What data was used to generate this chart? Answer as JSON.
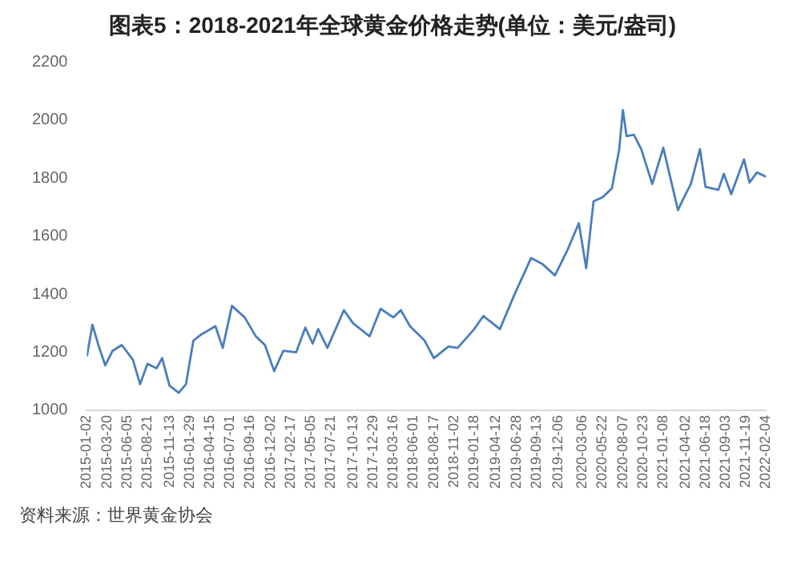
{
  "chart_data": {
    "type": "line",
    "title": "图表5：2018-2021年全球黄金价格走势(单位：美元/盎司)",
    "annotations": [
      "资料来源：世界黄金协会"
    ],
    "x": [
      "2015-01-02",
      "2015-01-23",
      "2015-02-13",
      "2015-03-13",
      "2015-04-10",
      "2015-05-15",
      "2015-06-26",
      "2015-07-24",
      "2015-08-21",
      "2015-09-25",
      "2015-10-16",
      "2015-11-13",
      "2015-12-18",
      "2016-01-15",
      "2016-02-12",
      "2016-03-11",
      "2016-05-06",
      "2016-06-03",
      "2016-07-08",
      "2016-08-26",
      "2016-10-07",
      "2016-11-11",
      "2016-12-16",
      "2017-01-20",
      "2017-03-10",
      "2017-04-14",
      "2017-05-12",
      "2017-06-02",
      "2017-07-07",
      "2017-09-08",
      "2017-10-13",
      "2017-12-15",
      "2018-01-26",
      "2018-03-16",
      "2018-04-13",
      "2018-05-18",
      "2018-07-13",
      "2018-08-17",
      "2018-10-12",
      "2018-11-16",
      "2019-01-18",
      "2019-02-22",
      "2019-04-26",
      "2019-06-21",
      "2019-08-23",
      "2019-10-04",
      "2019-11-22",
      "2020-01-10",
      "2020-02-21",
      "2020-03-20",
      "2020-04-17",
      "2020-05-22",
      "2020-06-26",
      "2020-07-24",
      "2020-08-07",
      "2020-08-21",
      "2020-09-18",
      "2020-10-16",
      "2020-11-27",
      "2021-01-08",
      "2021-03-05",
      "2021-03-26",
      "2021-04-23",
      "2021-05-28",
      "2021-06-18",
      "2021-08-06",
      "2021-08-27",
      "2021-09-24",
      "2021-11-12",
      "2021-12-03",
      "2021-12-31",
      "2022-02-04"
    ],
    "series": [
      {
        "color": "#4a7ebb",
        "values": [
          1186,
          1295,
          1230,
          1155,
          1205,
          1225,
          1175,
          1090,
          1160,
          1145,
          1180,
          1085,
          1060,
          1090,
          1240,
          1260,
          1290,
          1215,
          1360,
          1320,
          1255,
          1225,
          1135,
          1205,
          1200,
          1285,
          1230,
          1280,
          1215,
          1345,
          1300,
          1255,
          1350,
          1320,
          1345,
          1290,
          1240,
          1180,
          1220,
          1215,
          1280,
          1325,
          1280,
          1400,
          1525,
          1505,
          1465,
          1555,
          1645,
          1490,
          1720,
          1735,
          1765,
          1900,
          2035,
          1945,
          1950,
          1900,
          1780,
          1905,
          1690,
          1730,
          1780,
          1900,
          1770,
          1760,
          1815,
          1745,
          1865,
          1785,
          1820,
          1805
        ]
      }
    ],
    "xlim": [
      "2015-01-02",
      "2022-02-04"
    ],
    "xticks": [
      "2015-01-02",
      "2015-03-20",
      "2015-06-05",
      "2015-08-21",
      "2015-11-13",
      "2016-01-29",
      "2016-04-15",
      "2016-07-01",
      "2016-09-16",
      "2016-12-02",
      "2017-02-17",
      "2017-05-05",
      "2017-07-21",
      "2017-10-13",
      "2017-12-29",
      "2018-03-16",
      "2018-06-01",
      "2018-08-17",
      "2018-11-02",
      "2019-01-18",
      "2019-04-12",
      "2019-06-28",
      "2019-09-13",
      "2019-12-06",
      "2020-03-06",
      "2020-05-22",
      "2020-08-07",
      "2020-10-23",
      "2021-01-08",
      "2021-04-02",
      "2021-06-18",
      "2021-09-03",
      "2021-11-19",
      "2022-02-04"
    ],
    "ylim": [
      1000,
      2200
    ],
    "yticks": [
      1000,
      1200,
      1400,
      1600,
      1800,
      2000,
      2200
    ],
    "grid": false,
    "legend": false,
    "marker": "none",
    "line_style": "solid"
  }
}
